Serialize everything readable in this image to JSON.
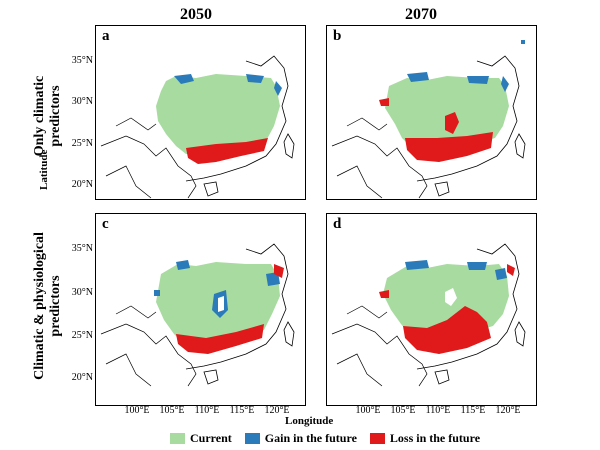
{
  "columns": [
    "2050",
    "2070"
  ],
  "rows": [
    {
      "line1": "Only climatic",
      "line2": "predictors"
    },
    {
      "line1": "Climatic & physiological",
      "line2": "predictors"
    }
  ],
  "panels": [
    "a",
    "b",
    "c",
    "d"
  ],
  "y_ticks": [
    "35°N",
    "30°N",
    "25°N",
    "20°N"
  ],
  "x_ticks": [
    "100°E",
    "105°E",
    "110°E",
    "115°E",
    "120°E"
  ],
  "y_axis_title": "Latitude",
  "x_axis_title": "Longitude",
  "legend": [
    {
      "label": "Current",
      "color": "#a8dba0"
    },
    {
      "label": "Gain in the future",
      "color": "#2b7bba"
    },
    {
      "label": "Loss in the future",
      "color": "#e0191b"
    }
  ]
}
